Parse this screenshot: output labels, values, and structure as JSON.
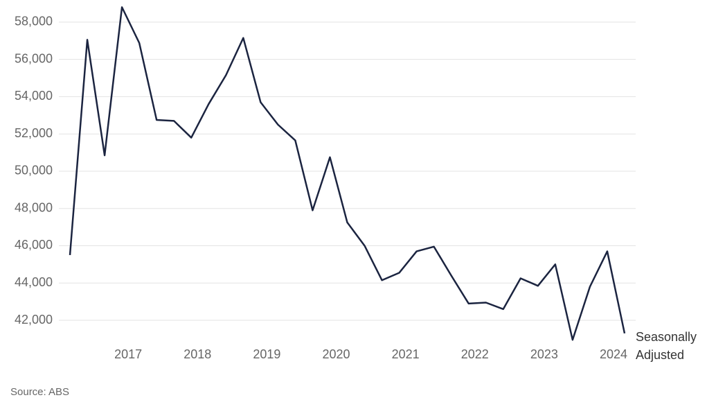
{
  "chart_data": {
    "type": "line",
    "source": "Source: ABS",
    "x": [
      2016.16,
      2016.41,
      2016.66,
      2016.91,
      2017.16,
      2017.41,
      2017.66,
      2017.91,
      2018.16,
      2018.41,
      2018.66,
      2018.91,
      2019.16,
      2019.41,
      2019.66,
      2019.91,
      2020.16,
      2020.41,
      2020.66,
      2020.91,
      2021.16,
      2021.41,
      2021.66,
      2021.91,
      2022.16,
      2022.41,
      2022.66,
      2022.91,
      2023.16,
      2023.41,
      2023.66,
      2023.91,
      2024.16
    ],
    "series": [
      {
        "name": "Seasonally Adjusted",
        "color": "#1b2440",
        "values": [
          45500,
          57050,
          50850,
          58800,
          56880,
          52750,
          52700,
          51800,
          53600,
          55150,
          57150,
          53700,
          52500,
          51650,
          47900,
          50750,
          47250,
          46000,
          44150,
          44550,
          45700,
          45950,
          44400,
          42900,
          42950,
          42600,
          44250,
          43850,
          45000,
          40950,
          43800,
          45700,
          41300
        ]
      }
    ],
    "xlim": [
      2016,
      2024.32
    ],
    "xticks": [
      2017,
      2018,
      2019,
      2020,
      2021,
      2022,
      2023,
      2024
    ],
    "ylim": [
      40900,
      59000
    ],
    "yticks": [
      {
        "value": 42000,
        "label": "42,000"
      },
      {
        "value": 44000,
        "label": "44,000"
      },
      {
        "value": 46000,
        "label": "46,000"
      },
      {
        "value": 48000,
        "label": "48,000"
      },
      {
        "value": 50000,
        "label": "50,000"
      },
      {
        "value": 52000,
        "label": "52,000"
      },
      {
        "value": 54000,
        "label": "54,000"
      },
      {
        "value": 56000,
        "label": "56,000"
      },
      {
        "value": 58000,
        "label": "58,000"
      }
    ],
    "grid": true
  }
}
